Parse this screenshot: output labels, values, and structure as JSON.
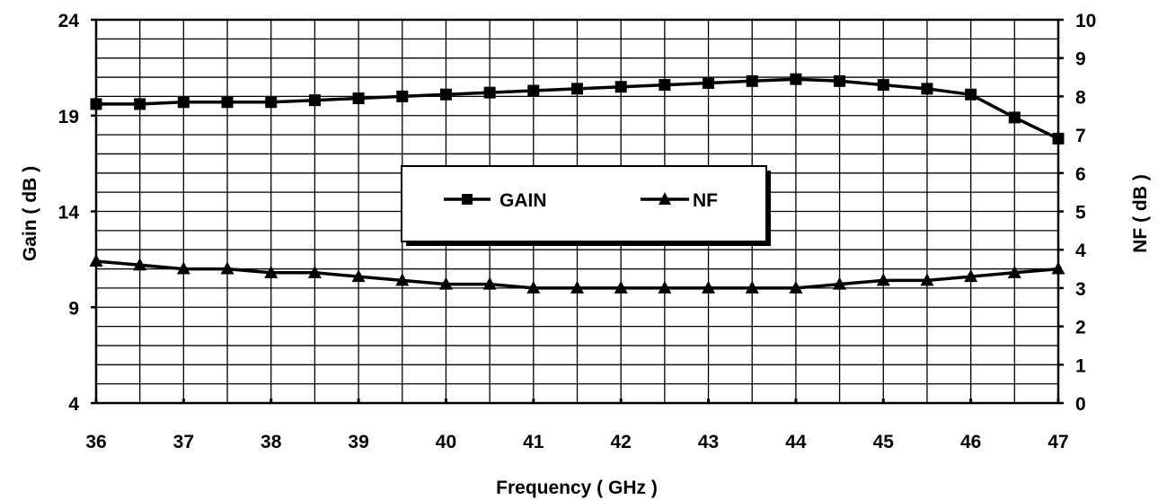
{
  "chart_data": {
    "type": "line",
    "title": "",
    "xlabel": "Frequency ( GHz )",
    "ylabel_left": "Gain ( dB )",
    "ylabel_right": "NF ( dB )",
    "xlim": [
      36,
      47
    ],
    "ylim_left": [
      4,
      24
    ],
    "ylim_right": [
      0,
      10
    ],
    "x_ticks": [
      36,
      37,
      38,
      39,
      40,
      41,
      42,
      43,
      44,
      45,
      46,
      47
    ],
    "y_left_ticks": [
      4,
      9,
      14,
      19,
      24
    ],
    "y_right_ticks": [
      0,
      1,
      2,
      3,
      4,
      5,
      6,
      7,
      8,
      9,
      10
    ],
    "grid": true,
    "legend_position": "center",
    "x": [
      36,
      36.5,
      37,
      37.5,
      38,
      38.5,
      39,
      39.5,
      40,
      40.5,
      41,
      41.5,
      42,
      42.5,
      43,
      43.5,
      44,
      44.5,
      45,
      45.5,
      46,
      46.5,
      47
    ],
    "series": [
      {
        "name": "GAIN",
        "axis": "left",
        "marker": "square",
        "values": [
          19.6,
          19.6,
          19.7,
          19.7,
          19.7,
          19.8,
          19.9,
          20.0,
          20.1,
          20.2,
          20.3,
          20.4,
          20.5,
          20.6,
          20.7,
          20.8,
          20.9,
          20.8,
          20.6,
          20.4,
          20.1,
          18.9,
          17.8
        ]
      },
      {
        "name": "NF",
        "axis": "right",
        "marker": "triangle",
        "values": [
          3.7,
          3.6,
          3.5,
          3.5,
          3.4,
          3.4,
          3.3,
          3.2,
          3.1,
          3.1,
          3.0,
          3.0,
          3.0,
          3.0,
          3.0,
          3.0,
          3.0,
          3.1,
          3.2,
          3.2,
          3.3,
          3.4,
          3.5
        ]
      }
    ]
  }
}
